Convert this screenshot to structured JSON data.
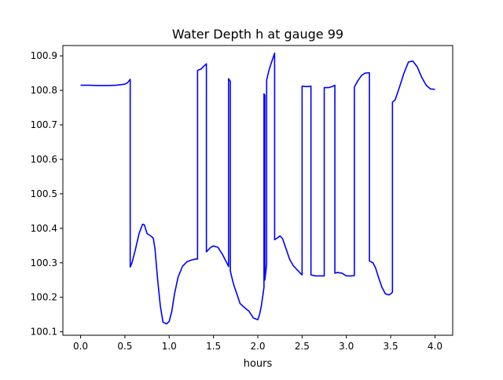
{
  "chart_data": {
    "type": "line",
    "title": "Water Depth h at gauge 99",
    "xlabel": "hours",
    "ylabel": "",
    "xlim": [
      -0.2,
      4.2
    ],
    "ylim": [
      100.09,
      100.93
    ],
    "xticks": [
      0.0,
      0.5,
      1.0,
      1.5,
      2.0,
      2.5,
      3.0,
      3.5,
      4.0
    ],
    "xtick_labels": [
      "0.0",
      "0.5",
      "1.0",
      "1.5",
      "2.0",
      "2.5",
      "3.0",
      "3.5",
      "4.0"
    ],
    "yticks": [
      100.1,
      100.2,
      100.3,
      100.4,
      100.5,
      100.6,
      100.7,
      100.8,
      100.9
    ],
    "ytick_labels": [
      "100.1",
      "100.2",
      "100.3",
      "100.4",
      "100.5",
      "100.6",
      "100.7",
      "100.8",
      "100.9"
    ],
    "grid": false,
    "color": "#0000ff",
    "series": [
      {
        "x": [
          0.0,
          0.1,
          0.2,
          0.3,
          0.4,
          0.5,
          0.53,
          0.56,
          0.56,
          0.58,
          0.62,
          0.66,
          0.7,
          0.72,
          0.75,
          0.78,
          0.82,
          0.84,
          0.87,
          0.9,
          0.93,
          0.97,
          1.0,
          1.03,
          1.06,
          1.1,
          1.15,
          1.2,
          1.25,
          1.3,
          1.32,
          1.32,
          1.36,
          1.4,
          1.42,
          1.42,
          1.47,
          1.5,
          1.55,
          1.6,
          1.65,
          1.67,
          1.67,
          1.69,
          1.69,
          1.7,
          1.73,
          1.77,
          1.8,
          1.85,
          1.9,
          1.95,
          2.0,
          2.02,
          2.04,
          2.06,
          2.07,
          2.07,
          2.08,
          2.08,
          2.1,
          2.1,
          2.13,
          2.16,
          2.18,
          2.19,
          2.19,
          2.22,
          2.25,
          2.28,
          2.32,
          2.36,
          2.4,
          2.45,
          2.5,
          2.5,
          2.55,
          2.6,
          2.6,
          2.65,
          2.7,
          2.75,
          2.75,
          2.8,
          2.85,
          2.87,
          2.87,
          2.9,
          2.95,
          3.0,
          3.05,
          3.09,
          3.09,
          3.13,
          3.17,
          3.21,
          3.25,
          3.26,
          3.26,
          3.3,
          3.33,
          3.36,
          3.4,
          3.44,
          3.48,
          3.5,
          3.52,
          3.52,
          3.52,
          3.55,
          3.6,
          3.65,
          3.7,
          3.75,
          3.8,
          3.85,
          3.9,
          3.95,
          4.0
        ],
        "y": [
          100.815,
          100.815,
          100.814,
          100.814,
          100.815,
          100.818,
          100.822,
          100.832,
          100.288,
          100.3,
          100.34,
          100.385,
          100.412,
          100.41,
          100.385,
          100.38,
          100.372,
          100.34,
          100.25,
          100.175,
          100.128,
          100.123,
          100.13,
          100.16,
          100.21,
          100.258,
          100.29,
          100.303,
          100.308,
          100.311,
          100.311,
          100.858,
          100.862,
          100.872,
          100.877,
          100.332,
          100.345,
          100.349,
          100.345,
          100.325,
          100.3,
          100.289,
          100.834,
          100.826,
          100.278,
          100.265,
          100.235,
          100.205,
          100.182,
          100.17,
          100.16,
          100.14,
          100.135,
          100.15,
          100.175,
          100.21,
          100.23,
          100.79,
          100.786,
          100.25,
          100.295,
          100.83,
          100.862,
          100.885,
          100.9,
          100.908,
          100.367,
          100.372,
          100.378,
          100.37,
          100.34,
          100.31,
          100.292,
          100.278,
          100.265,
          100.812,
          100.811,
          100.812,
          100.265,
          100.262,
          100.262,
          100.262,
          100.808,
          100.808,
          100.812,
          100.815,
          100.27,
          100.272,
          100.27,
          100.262,
          100.262,
          100.263,
          100.81,
          100.828,
          100.843,
          100.85,
          100.851,
          100.851,
          100.305,
          100.3,
          100.285,
          100.26,
          100.23,
          100.21,
          100.207,
          100.21,
          100.215,
          100.22,
          100.766,
          100.772,
          100.81,
          100.85,
          100.882,
          100.885,
          100.868,
          100.838,
          100.815,
          100.804,
          100.803
        ]
      }
    ]
  }
}
